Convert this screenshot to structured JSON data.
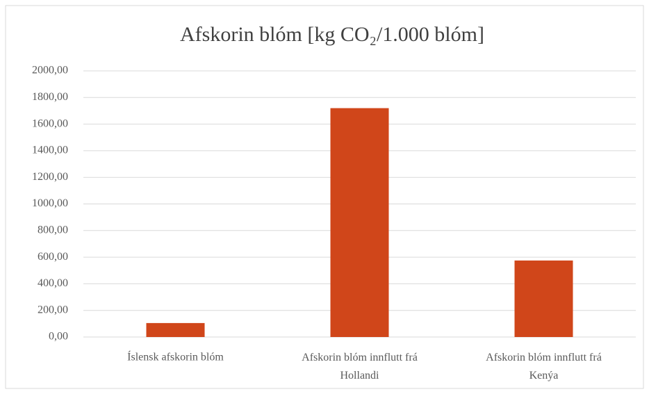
{
  "chart_data": {
    "type": "bar",
    "title": "Afskorin blóm [kg CO₂/1.000 blóm]",
    "categories": [
      "Íslensk afskorin blóm",
      "Afskorin blóm innflutt frá Hollandi",
      "Afskorin blóm innflutt frá Kenýa"
    ],
    "values": [
      105,
      1720,
      575
    ],
    "color": "#d0461a",
    "ylim": [
      0,
      2000
    ],
    "yticks": [
      {
        "value": 0,
        "label": "0,00"
      },
      {
        "value": 200,
        "label": "200,00"
      },
      {
        "value": 400,
        "label": "400,00"
      },
      {
        "value": 600,
        "label": "600,00"
      },
      {
        "value": 800,
        "label": "800,00"
      },
      {
        "value": 1000,
        "label": "1000,00"
      },
      {
        "value": 1200,
        "label": "1200,00"
      },
      {
        "value": 1400,
        "label": "1400,00"
      },
      {
        "value": 1600,
        "label": "1600,00"
      },
      {
        "value": 1800,
        "label": "1800,00"
      },
      {
        "value": 2000,
        "label": "2000,00"
      }
    ],
    "grid": true
  }
}
